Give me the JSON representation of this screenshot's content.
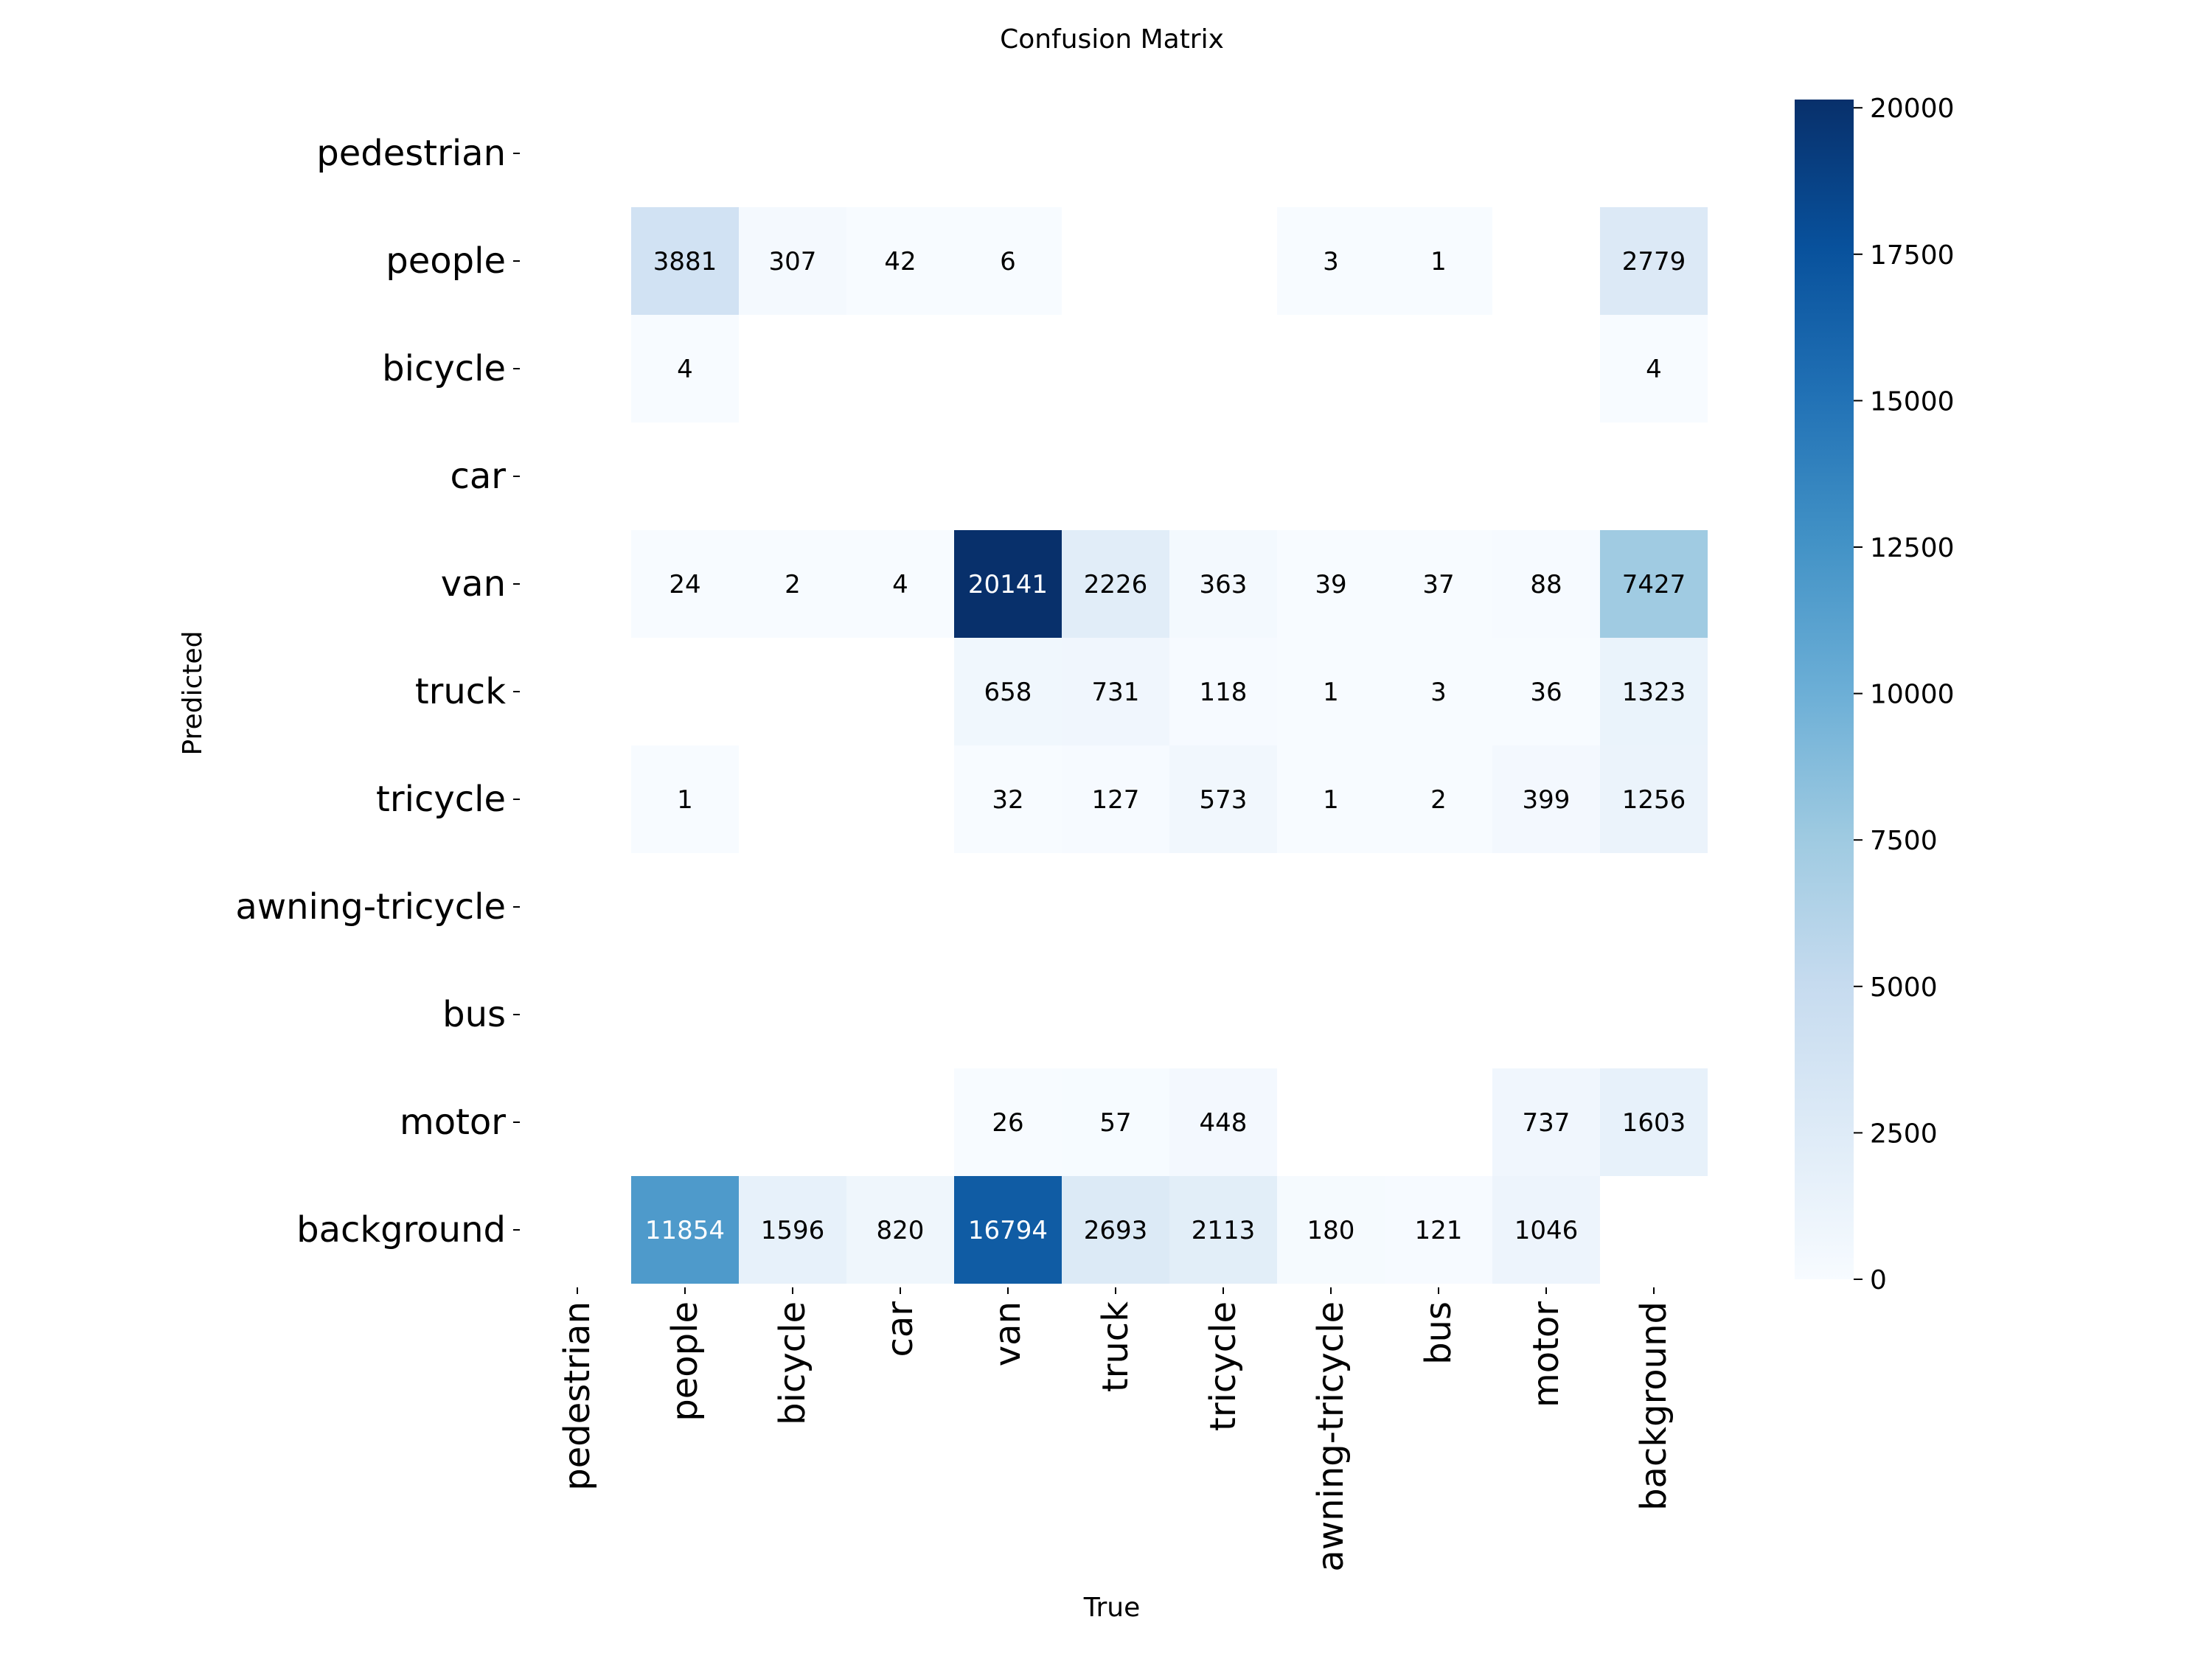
{
  "chart_data": {
    "type": "heatmap",
    "title": "Confusion Matrix",
    "xlabel": "True",
    "ylabel": "Predicted",
    "categories": [
      "pedestrian",
      "people",
      "bicycle",
      "car",
      "van",
      "truck",
      "tricycle",
      "awning-tricycle",
      "bus",
      "motor",
      "background"
    ],
    "matrix": [
      [
        null,
        null,
        null,
        null,
        null,
        null,
        null,
        null,
        null,
        null,
        null
      ],
      [
        null,
        3881,
        307,
        42,
        6,
        null,
        null,
        3,
        1,
        null,
        2779
      ],
      [
        null,
        4,
        null,
        null,
        null,
        null,
        null,
        null,
        null,
        null,
        4
      ],
      [
        null,
        null,
        null,
        null,
        null,
        null,
        null,
        null,
        null,
        null,
        null
      ],
      [
        null,
        24,
        2,
        4,
        20141,
        2226,
        363,
        39,
        37,
        88,
        7427
      ],
      [
        null,
        null,
        null,
        null,
        658,
        731,
        118,
        1,
        3,
        36,
        1323
      ],
      [
        null,
        1,
        null,
        null,
        32,
        127,
        573,
        1,
        2,
        399,
        1256
      ],
      [
        null,
        null,
        null,
        null,
        null,
        null,
        null,
        null,
        null,
        null,
        null
      ],
      [
        null,
        null,
        null,
        null,
        null,
        null,
        null,
        null,
        null,
        null,
        null
      ],
      [
        null,
        null,
        null,
        null,
        26,
        57,
        448,
        null,
        null,
        737,
        1603
      ],
      [
        null,
        11854,
        1596,
        820,
        16794,
        2693,
        2113,
        180,
        121,
        1046,
        null
      ]
    ],
    "colorbar": {
      "min": 0,
      "max": 20141,
      "ticks": [
        0,
        2500,
        5000,
        7500,
        10000,
        12500,
        15000,
        17500,
        20000
      ],
      "colormap": "Blues",
      "colors": [
        "#f7fbff",
        "#deebf7",
        "#c6dbef",
        "#9ecae1",
        "#6baed6",
        "#4292c6",
        "#2171b5",
        "#08519c",
        "#08306b"
      ]
    },
    "grid": false,
    "legend": "colorbar-right"
  }
}
